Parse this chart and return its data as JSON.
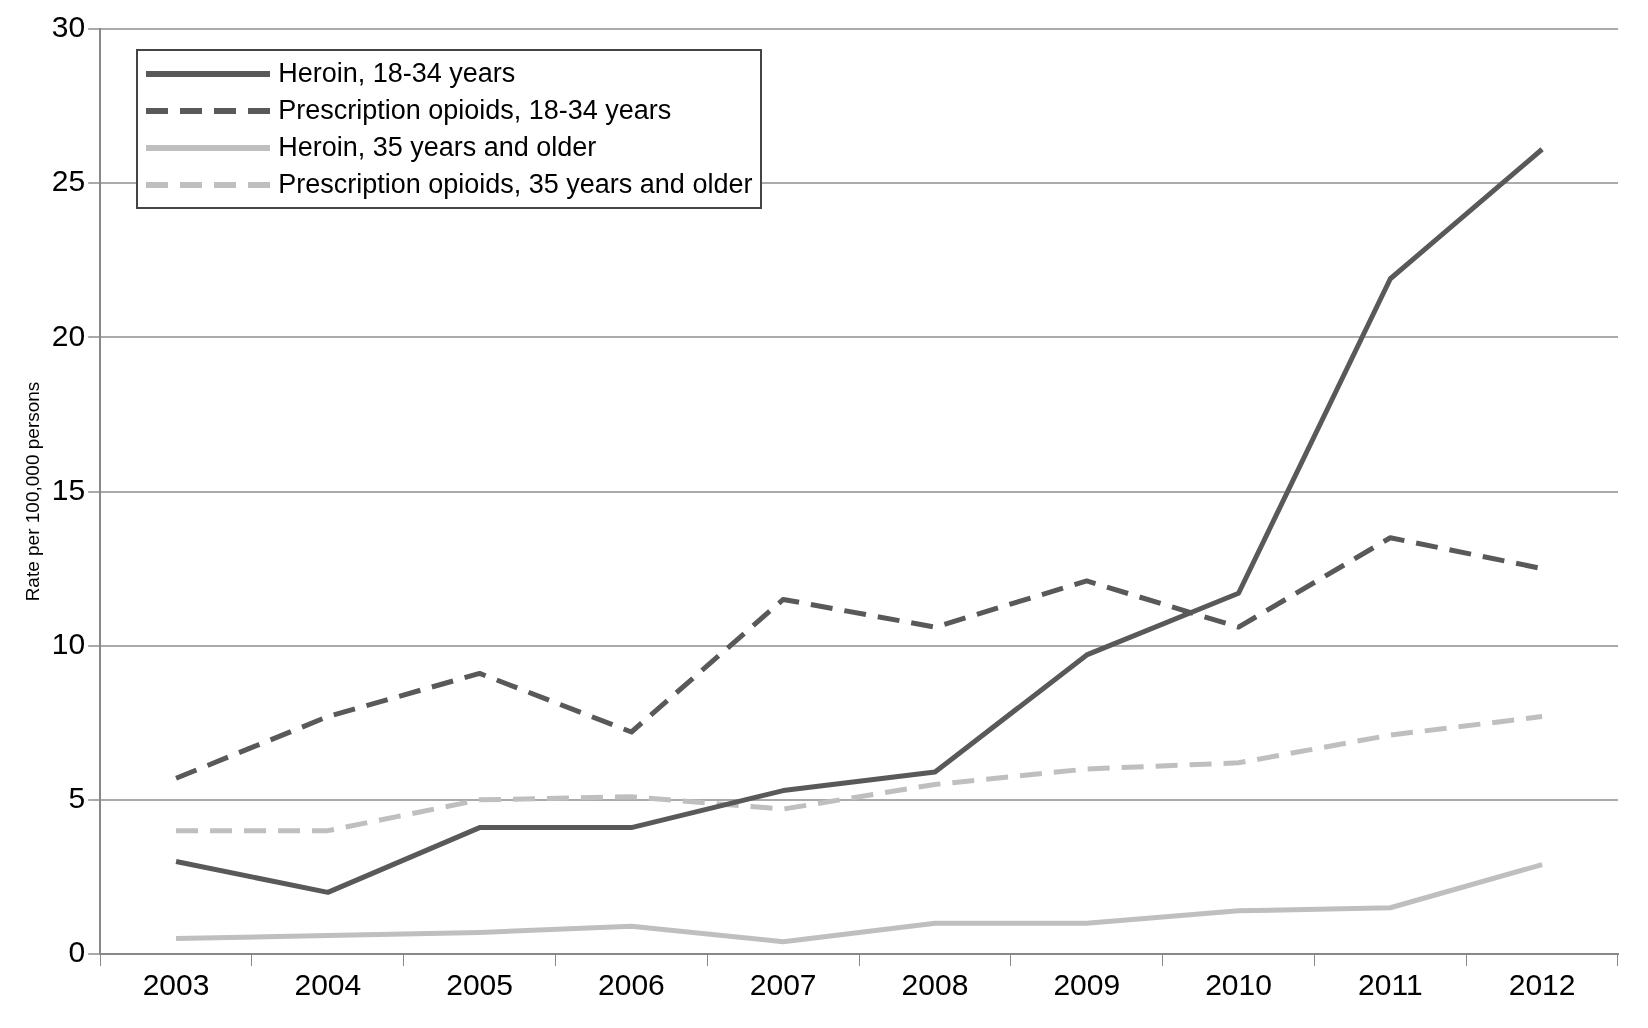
{
  "chart_data": {
    "type": "line",
    "ylabel": "Rate per 100,000 persons",
    "categories": [
      "2003",
      "2004",
      "2005",
      "2006",
      "2007",
      "2008",
      "2009",
      "2010",
      "2011",
      "2012"
    ],
    "series": [
      {
        "name": "Heroin, 18-34 years",
        "color": "#595959",
        "line_style": "solid",
        "values": [
          3.0,
          2.0,
          4.1,
          4.1,
          5.3,
          5.9,
          9.7,
          11.7,
          21.9,
          26.1
        ]
      },
      {
        "name": "Prescription opioids, 18-34 years",
        "color": "#595959",
        "line_style": "dashed",
        "values": [
          5.7,
          7.7,
          9.1,
          7.2,
          11.5,
          10.6,
          12.1,
          10.6,
          13.5,
          12.5
        ]
      },
      {
        "name": "Heroin, 35 years and older",
        "color": "#bfbfbf",
        "line_style": "solid",
        "values": [
          0.5,
          0.6,
          0.7,
          0.9,
          0.4,
          1.0,
          1.0,
          1.4,
          1.5,
          2.9
        ]
      },
      {
        "name": "Prescription opioids, 35 years and older",
        "color": "#bfbfbf",
        "line_style": "dashed",
        "values": [
          4.0,
          4.0,
          5.0,
          5.1,
          4.7,
          5.5,
          6.0,
          6.2,
          7.1,
          7.7
        ]
      }
    ],
    "ylim": [
      0,
      30
    ],
    "yticks": [
      0,
      5,
      10,
      15,
      20,
      25,
      30
    ],
    "grid": "y",
    "legend": "top left",
    "marker": "none"
  }
}
